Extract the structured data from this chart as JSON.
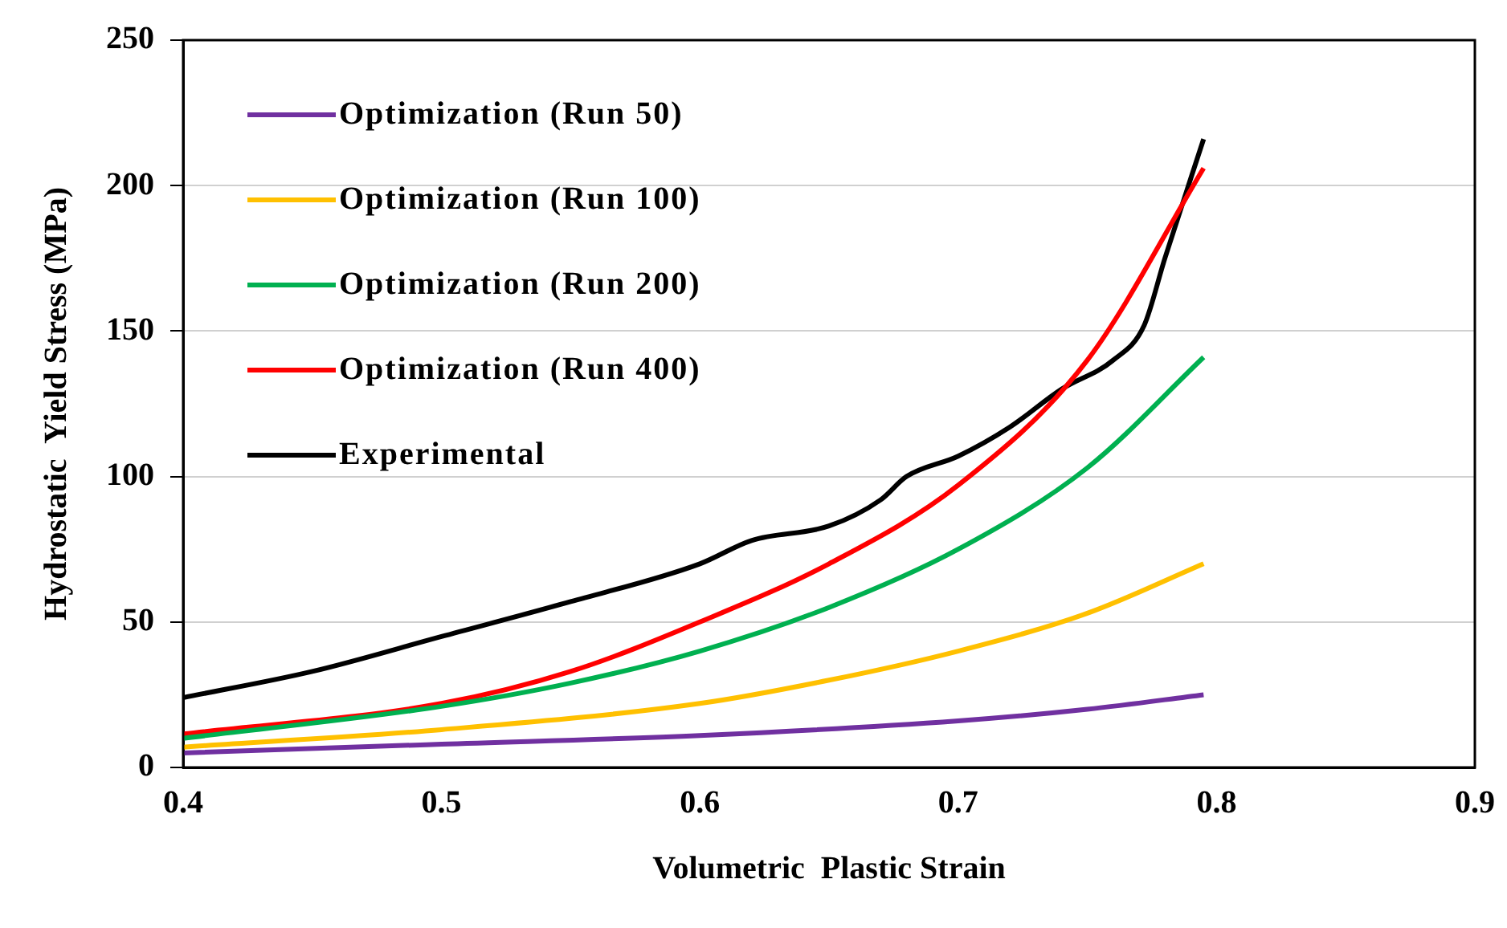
{
  "chart_data": {
    "type": "line",
    "xlabel": "Volumetric  Plastic Strain",
    "ylabel": "Hydrostatic  Yield Stress (MPa)",
    "xlim": [
      0.4,
      0.9
    ],
    "xticks": [
      0.4,
      0.5,
      0.6,
      0.7,
      0.8,
      0.9
    ],
    "ylim": [
      0,
      250
    ],
    "yticks": [
      0,
      50,
      100,
      150,
      200,
      250
    ],
    "grid": "y",
    "legend": "top left",
    "marker": "none",
    "line_style": "solid",
    "series": [
      {
        "name": "Optimization (Run 50)",
        "color": "#7030a0",
        "x": [
          0.4,
          0.5,
          0.6,
          0.7,
          0.75,
          0.795
        ],
        "values": [
          5,
          8,
          11,
          16,
          20,
          25
        ]
      },
      {
        "name": "Optimization (Run 100)",
        "color": "#ffc000",
        "x": [
          0.4,
          0.5,
          0.6,
          0.65,
          0.7,
          0.75,
          0.795
        ],
        "values": [
          7,
          13,
          22,
          30,
          40,
          53,
          70
        ]
      },
      {
        "name": "Optimization (Run 200)",
        "color": "#00b050",
        "x": [
          0.4,
          0.5,
          0.55,
          0.6,
          0.65,
          0.7,
          0.75,
          0.795
        ],
        "values": [
          10,
          21,
          29,
          40,
          55,
          75,
          103,
          141
        ]
      },
      {
        "name": "Optimization (Run 400)",
        "color": "#ff0000",
        "x": [
          0.4,
          0.5,
          0.55,
          0.6,
          0.65,
          0.7,
          0.75,
          0.795
        ],
        "values": [
          11.5,
          22,
          33,
          50,
          70,
          97,
          140,
          206
        ]
      },
      {
        "name": "Experimental",
        "color": "#000000",
        "x": [
          0.4,
          0.45,
          0.5,
          0.55,
          0.6,
          0.62,
          0.65,
          0.67,
          0.68,
          0.7,
          0.72,
          0.74,
          0.76,
          0.772,
          0.78,
          0.795
        ],
        "values": [
          24,
          33,
          45,
          57,
          70,
          78,
          83,
          92,
          100,
          107,
          117,
          130,
          140,
          152,
          175,
          216
        ]
      }
    ]
  }
}
